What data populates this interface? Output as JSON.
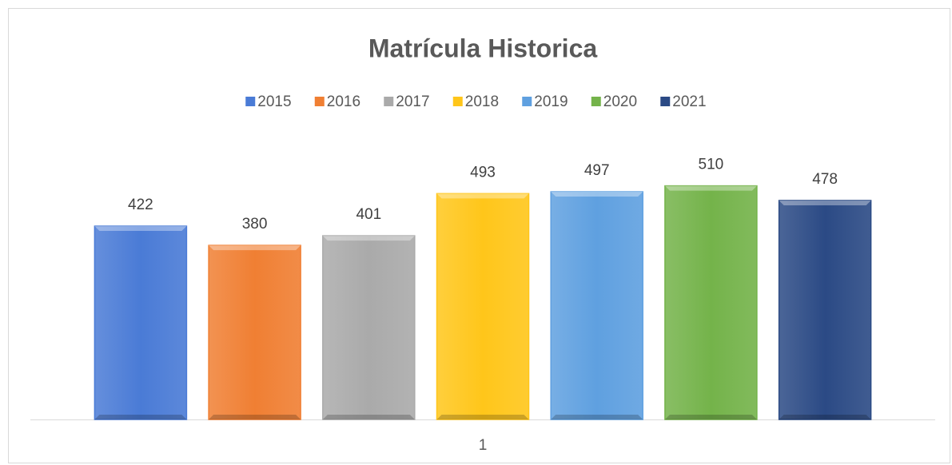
{
  "chart_data": {
    "type": "bar",
    "title": "Matrícula Historica",
    "categories": [
      "1"
    ],
    "series": [
      {
        "name": "2015",
        "color": "#4a7bd6",
        "values": [
          422
        ]
      },
      {
        "name": "2016",
        "color": "#f07f33",
        "values": [
          380
        ]
      },
      {
        "name": "2017",
        "color": "#aaaaaa",
        "values": [
          401
        ]
      },
      {
        "name": "2018",
        "color": "#ffc61a",
        "values": [
          493
        ]
      },
      {
        "name": "2019",
        "color": "#5fa0e0",
        "values": [
          497
        ]
      },
      {
        "name": "2020",
        "color": "#74b34a",
        "values": [
          510
        ]
      },
      {
        "name": "2021",
        "color": "#2b4a85",
        "values": [
          478
        ]
      }
    ],
    "ylim": [
      0,
      600
    ],
    "legend": "top"
  }
}
